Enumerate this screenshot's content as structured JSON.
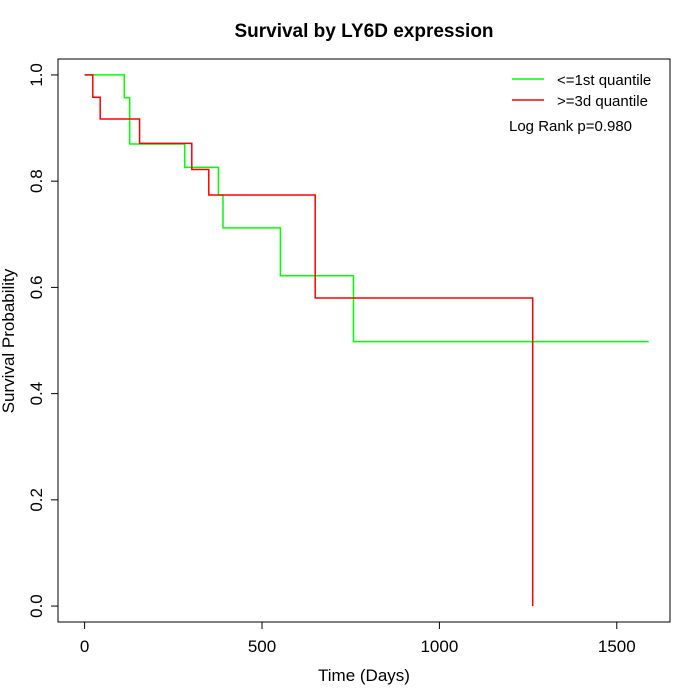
{
  "chart_data": {
    "type": "line",
    "title": "Survival by LY6D expression",
    "xlabel": "Time (Days)",
    "ylabel": "Survival Probability",
    "xlim": [
      -75,
      1650
    ],
    "ylim": [
      -0.03,
      1.03
    ],
    "x_ticks": [
      0,
      500,
      1000,
      1500
    ],
    "y_ticks": [
      0.0,
      0.2,
      0.4,
      0.6,
      0.8,
      1.0
    ],
    "grid": false,
    "legend_position": "top-right",
    "annotation": "Log Rank p=0.980",
    "series": [
      {
        "name": "<=1st quantile",
        "color": "#00ff00",
        "step_points": [
          [
            0,
            1.0
          ],
          [
            112,
            1.0
          ],
          [
            112,
            0.957
          ],
          [
            127,
            0.957
          ],
          [
            127,
            0.87
          ],
          [
            282,
            0.87
          ],
          [
            282,
            0.826
          ],
          [
            377,
            0.826
          ],
          [
            377,
            0.774
          ],
          [
            390,
            0.774
          ],
          [
            390,
            0.712
          ],
          [
            552,
            0.712
          ],
          [
            552,
            0.622
          ],
          [
            758,
            0.622
          ],
          [
            758,
            0.498
          ],
          [
            1590,
            0.498
          ]
        ]
      },
      {
        "name": ">=3d quantile",
        "color": "#ff0000",
        "step_points": [
          [
            0,
            1.0
          ],
          [
            23,
            1.0
          ],
          [
            23,
            0.958
          ],
          [
            44,
            0.958
          ],
          [
            44,
            0.917
          ],
          [
            155,
            0.917
          ],
          [
            155,
            0.871
          ],
          [
            302,
            0.871
          ],
          [
            302,
            0.822
          ],
          [
            350,
            0.822
          ],
          [
            350,
            0.774
          ],
          [
            650,
            0.774
          ],
          [
            650,
            0.58
          ],
          [
            1263,
            0.58
          ],
          [
            1263,
            0.0
          ]
        ]
      }
    ]
  }
}
